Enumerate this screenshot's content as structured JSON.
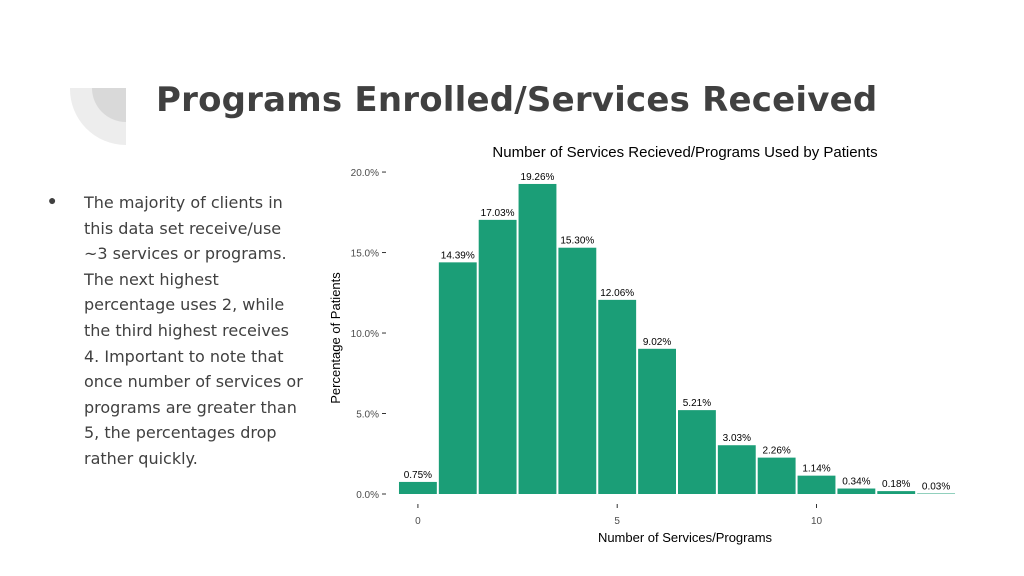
{
  "slide": {
    "title": "Programs Enrolled/Services Received",
    "bullet": "The majority of clients in this data set receive/use ~3 services or programs. The next highest percentage uses 2, while the third highest receives 4. Important to note that once number of services or programs are greater than 5, the percentages drop rather quickly."
  },
  "colors": {
    "bar": "#1b9e77",
    "deco_light": "#ededed",
    "deco_dark": "#d9d9d9",
    "text": "#404040"
  },
  "chart_data": {
    "type": "bar",
    "title": "Number of Services Recieved/Programs Used by Patients",
    "xlabel": "Number of Services/Programs",
    "ylabel": "Percentage of Patients",
    "categories": [
      0,
      1,
      2,
      3,
      4,
      5,
      6,
      7,
      8,
      9,
      10,
      11,
      12,
      13
    ],
    "values": [
      0.75,
      14.39,
      17.03,
      19.26,
      15.3,
      12.06,
      9.02,
      5.21,
      3.03,
      2.26,
      1.14,
      0.34,
      0.18,
      0.03
    ],
    "value_labels": [
      "0.75%",
      "14.39%",
      "17.03%",
      "19.26%",
      "15.30%",
      "12.06%",
      "9.02%",
      "5.21%",
      "3.03%",
      "2.26%",
      "1.14%",
      "0.34%",
      "0.18%",
      "0.03%"
    ],
    "x_ticks": [
      0,
      5,
      10
    ],
    "x_tick_labels": [
      "0",
      "5",
      "10"
    ],
    "y_ticks": [
      0,
      5,
      10,
      15,
      20
    ],
    "y_tick_labels": [
      "0.0%",
      "5.0%",
      "10.0%",
      "15.0%",
      "20.0%"
    ],
    "ylim": [
      0,
      20.5
    ],
    "xlim": [
      -0.65,
      13.65
    ],
    "grid": false,
    "legend": "none"
  }
}
